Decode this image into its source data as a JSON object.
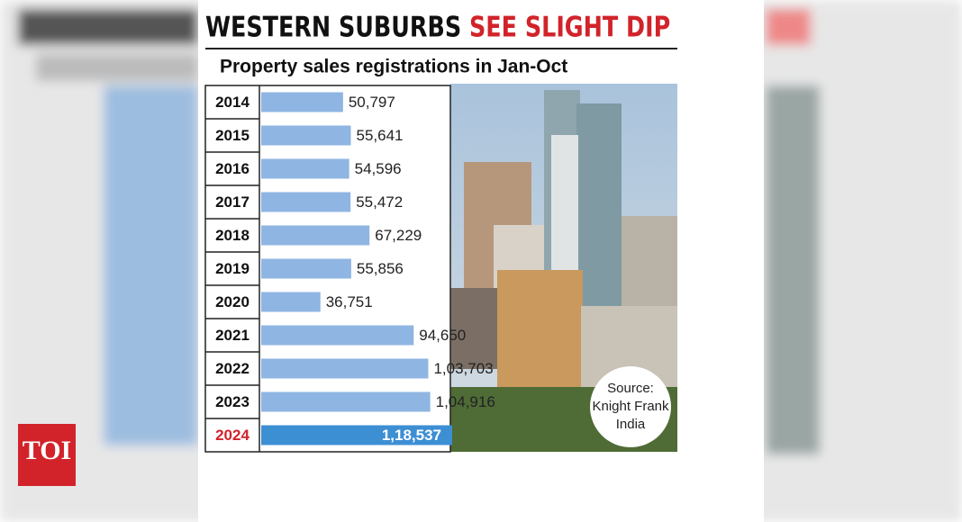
{
  "chart_data": {
    "type": "bar",
    "orientation": "horizontal",
    "title": "WESTERN SUBURBS",
    "title_highlight": "SEE SLIGHT DIP",
    "subtitle": "Property sales registrations in Jan-Oct",
    "categories": [
      "2014",
      "2015",
      "2016",
      "2017",
      "2018",
      "2019",
      "2020",
      "2021",
      "2022",
      "2023",
      "2024"
    ],
    "values": [
      50797,
      55641,
      54596,
      55472,
      67229,
      55856,
      36751,
      94650,
      103703,
      104916,
      118537
    ],
    "value_labels": [
      "50,797",
      "55,641",
      "54,596",
      "55,472",
      "67,229",
      "55,856",
      "36,751",
      "94,650",
      "1,03,703",
      "1,04,916",
      "1,18,537"
    ],
    "colors": [
      "#8fb5e3",
      "#8fb5e3",
      "#8fb5e3",
      "#8fb5e3",
      "#8fb5e3",
      "#8fb5e3",
      "#8fb5e3",
      "#8fb5e3",
      "#8fb5e3",
      "#8fb5e3",
      "#3d8fd4"
    ],
    "category_colors": [
      "#111111",
      "#111111",
      "#111111",
      "#111111",
      "#111111",
      "#111111",
      "#111111",
      "#111111",
      "#111111",
      "#111111",
      "#d2232a"
    ],
    "source": [
      "Source:",
      "Knight Frank",
      "India"
    ],
    "logo": "TOI"
  }
}
